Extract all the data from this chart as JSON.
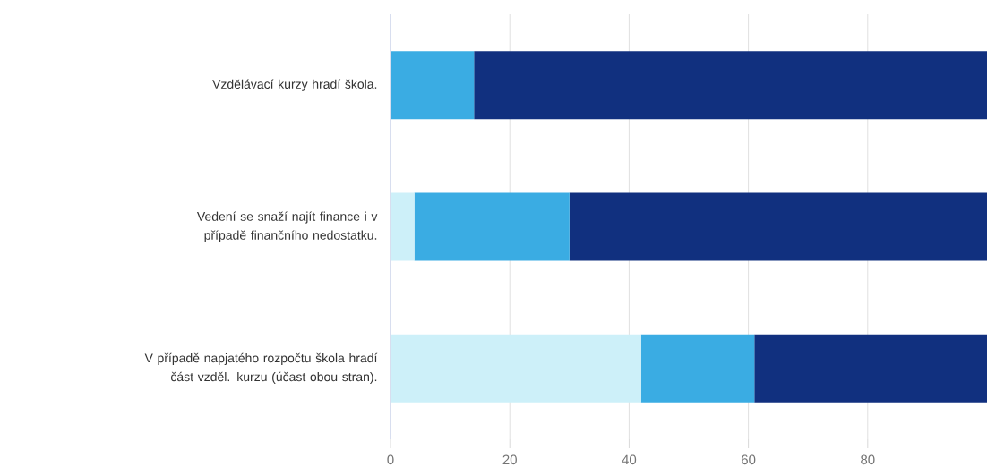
{
  "chart_data": {
    "type": "bar",
    "orientation": "horizontal",
    "stacked": true,
    "categories": [
      "Vzdělávací kurzy hradí škola.",
      "Vedení se snaží najít finance i v případě finančního nedostatku.",
      "V případě napjatého rozpočtu škola hradí část vzděl. kurzu (účast obou stran)."
    ],
    "series": [
      {
        "color": "#cdf0f9",
        "values": [
          0,
          4,
          42
        ]
      },
      {
        "color": "#3aace3",
        "values": [
          14,
          26,
          19
        ]
      },
      {
        "color": "#11307f",
        "values": [
          86,
          70,
          39
        ]
      }
    ],
    "xlim": [
      0,
      100
    ],
    "xticks": [
      0,
      20,
      40,
      60,
      80
    ],
    "grid": "x"
  }
}
